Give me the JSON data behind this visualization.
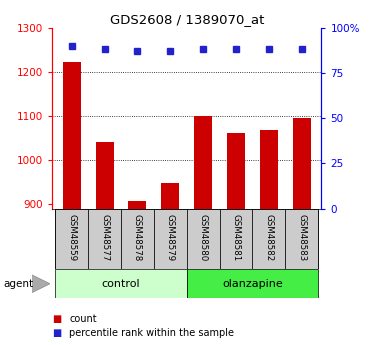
{
  "title": "GDS2608 / 1389070_at",
  "samples": [
    "GSM48559",
    "GSM48577",
    "GSM48578",
    "GSM48579",
    "GSM48580",
    "GSM48581",
    "GSM48582",
    "GSM48583"
  ],
  "count_values": [
    1222,
    1042,
    908,
    948,
    1100,
    1062,
    1068,
    1095
  ],
  "percentile_values": [
    90,
    88,
    87,
    87,
    88,
    88,
    88,
    88
  ],
  "bar_color": "#cc0000",
  "dot_color": "#2222cc",
  "ylim_left": [
    890,
    1300
  ],
  "ylim_right": [
    0,
    100
  ],
  "yticks_left": [
    900,
    1000,
    1100,
    1200,
    1300
  ],
  "yticks_right": [
    0,
    25,
    50,
    75,
    100
  ],
  "grid_lines": [
    1000,
    1100,
    1200
  ],
  "control_color": "#ccffcc",
  "olanzapine_color": "#44ee44",
  "sample_bg_color": "#cccccc",
  "legend_count_label": "count",
  "legend_pct_label": "percentile rank within the sample",
  "agent_label": "agent",
  "control_label": "control",
  "olanzapine_label": "olanzapine",
  "bar_width": 0.55
}
